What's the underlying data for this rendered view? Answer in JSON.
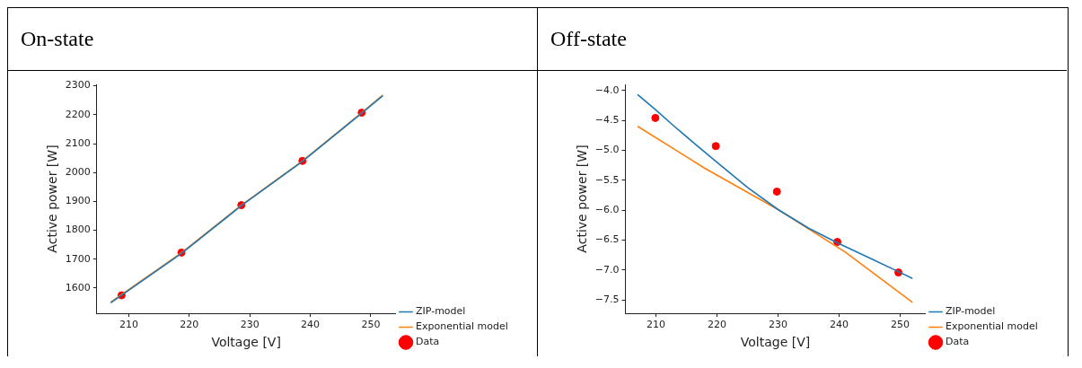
{
  "chart_data": [
    {
      "type": "line",
      "title": "On-state",
      "xlabel": "Voltage [V]",
      "ylabel": "Active power [W]",
      "xlim": [
        204.7,
        254.1
      ],
      "xticks": [
        210,
        220,
        230,
        240,
        250
      ],
      "ylim": [
        1513,
        2305
      ],
      "yticks": [
        1600,
        1700,
        1800,
        1900,
        2000,
        2100,
        2200,
        2300
      ],
      "grid": false,
      "legend": "right",
      "series": [
        {
          "name": "ZIP-model",
          "type": "line",
          "marker": "none",
          "color": "#1f77b4",
          "x": [
            207,
            218.7,
            228.6,
            238.7,
            248.5,
            252
          ],
          "values": [
            1549,
            1720,
            1885,
            2038,
            2205,
            2266
          ]
        },
        {
          "name": "Exponential model",
          "type": "line",
          "marker": "none",
          "color": "#ff7f0e",
          "x": [
            207,
            218.7,
            228.6,
            238.7,
            248.5,
            252
          ],
          "values": [
            1551,
            1722,
            1887,
            2040,
            2207,
            2268
          ]
        },
        {
          "name": "Data",
          "type": "scatter",
          "marker": "circle",
          "color": "#ff0000",
          "x": [
            208.8,
            218.7,
            228.6,
            238.7,
            248.5
          ],
          "values": [
            1575,
            1723,
            1887,
            2040,
            2207
          ]
        }
      ]
    },
    {
      "type": "line",
      "title": "Off-state",
      "xlabel": "Voltage [V]",
      "ylabel": "Active power [W]",
      "xlim": [
        205,
        254.1
      ],
      "xticks": [
        210,
        220,
        230,
        240,
        250
      ],
      "ylim": [
        -7.72,
        -3.9
      ],
      "yticks": [
        {
          "value": -7.5,
          "label": "−7.5"
        },
        {
          "value": -7,
          "label": "−7.0"
        },
        {
          "value": -6.5,
          "label": "−6.5"
        },
        {
          "value": -6,
          "label": "−6.0"
        },
        {
          "value": -5.5,
          "label": "−5.5"
        },
        {
          "value": -5,
          "label": "−5.0"
        },
        {
          "value": -4.5,
          "label": "−4.5"
        },
        {
          "value": -4,
          "label": "−4.0"
        }
      ],
      "grid": false,
      "legend": "right",
      "series": [
        {
          "name": "ZIP-model",
          "type": "line",
          "marker": "none",
          "color": "#1f77b4",
          "x": [
            207,
            210,
            213,
            216,
            220,
            225,
            230,
            235,
            240,
            245,
            250,
            252
          ],
          "values": [
            -4.07,
            -4.33,
            -4.6,
            -4.86,
            -5.2,
            -5.62,
            -5.99,
            -6.3,
            -6.56,
            -6.8,
            -7.04,
            -7.14
          ]
        },
        {
          "name": "Exponential model",
          "type": "line",
          "marker": "none",
          "color": "#ff7f0e",
          "x": [
            207,
            218,
            230,
            241,
            252
          ],
          "values": [
            -4.6,
            -5.3,
            -5.99,
            -6.7,
            -7.54
          ]
        },
        {
          "name": "Data",
          "type": "scatter",
          "marker": "circle",
          "color": "#ff0000",
          "x": [
            209.9,
            219.8,
            229.8,
            239.7,
            249.7
          ],
          "values": [
            -4.46,
            -4.93,
            -5.69,
            -6.53,
            -7.04
          ]
        }
      ]
    }
  ]
}
